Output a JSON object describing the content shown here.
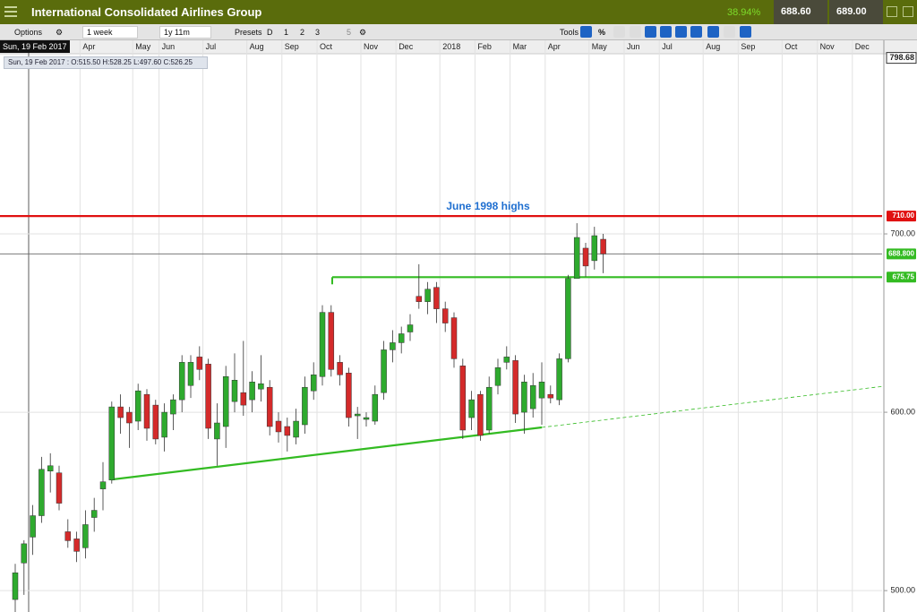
{
  "header": {
    "title": "International Consolidated Airlines Group",
    "change": "38.94%",
    "bid": "688.60",
    "ask": "689.00"
  },
  "toolbar": {
    "options": "Options",
    "interval": "1 week",
    "range": "1y 11m",
    "presets": "Presets",
    "preset_buttons": [
      "D",
      "1",
      "2",
      "3",
      "5"
    ],
    "tools": "Tools",
    "percent": "%"
  },
  "cursor": {
    "date": "Sun, 19 Feb 2017",
    "info": "Sun, 19 Feb 2017 : O:515.50 H:528.25 L:497.60 C:526.25"
  },
  "chart_data": {
    "type": "candlestick",
    "annotation": "June 1998 highs",
    "categories": [
      null,
      null,
      null,
      null,
      null,
      null,
      null,
      null,
      "Apr",
      null,
      null,
      null,
      null,
      null,
      "May",
      null,
      null,
      "Jun",
      null,
      null,
      null,
      null,
      "Jul",
      null,
      null,
      null,
      null,
      "Aug",
      null,
      null,
      null,
      "Sep",
      null,
      null,
      null,
      "Oct",
      null,
      null,
      null,
      null,
      "Nov",
      null,
      null,
      null,
      "Dec",
      null,
      null,
      null,
      null,
      "2018",
      null,
      null,
      null,
      "Feb",
      null,
      null,
      null,
      "Mar",
      null,
      null,
      null,
      "Apr",
      null,
      null,
      null,
      null,
      "May",
      null,
      null,
      null,
      "Jun",
      null,
      null,
      null,
      "Jul",
      null,
      null,
      null,
      null,
      "Aug",
      null,
      null,
      null,
      "Sep",
      null,
      null,
      null,
      null,
      "Oct",
      null,
      null,
      null,
      "Nov",
      null,
      null,
      null,
      "Dec",
      null,
      null,
      null
    ],
    "open": [
      495,
      515.5,
      530,
      542,
      567,
      566,
      533,
      529,
      524,
      541,
      557,
      562,
      603,
      600,
      595,
      610,
      604,
      586,
      599,
      607,
      615,
      631,
      627,
      585,
      592,
      606,
      611,
      607,
      613,
      614,
      595,
      592,
      586,
      593,
      612,
      620,
      656,
      628,
      622,
      598,
      596,
      595,
      611,
      635,
      639,
      645,
      665,
      662,
      670,
      658,
      653,
      626,
      597,
      610,
      590,
      615,
      628,
      629,
      600,
      602,
      608,
      610,
      607,
      630,
      675,
      692,
      685,
      697,
      null,
      null,
      null,
      null,
      null,
      null,
      null,
      null,
      null,
      null,
      null,
      null,
      null,
      null,
      null,
      null,
      null,
      null,
      null,
      null,
      null,
      null,
      null,
      null,
      null,
      null,
      null,
      null,
      null,
      null,
      null,
      null
    ],
    "high": [
      515,
      528.25,
      548,
      575,
      577,
      570,
      540,
      533,
      545,
      552,
      572,
      606,
      610,
      603,
      616,
      613,
      607,
      605,
      610,
      632,
      632,
      637,
      630,
      605,
      626,
      633,
      640,
      623,
      632,
      618,
      600,
      597,
      602,
      620,
      628,
      660,
      660,
      632,
      625,
      603,
      600,
      615,
      640,
      646,
      648,
      655,
      683,
      673,
      673,
      662,
      656,
      630,
      612,
      612,
      620,
      630,
      637,
      632,
      621,
      622,
      628,
      615,
      633,
      677,
      706,
      695,
      704,
      700,
      null,
      null,
      null,
      null,
      null,
      null,
      null,
      null,
      null,
      null,
      null,
      null,
      null,
      null,
      null,
      null,
      null,
      null,
      null,
      null,
      null,
      null,
      null,
      null,
      null,
      null,
      null,
      null,
      null,
      null,
      null,
      null
    ],
    "low": [
      488,
      497.6,
      520,
      538,
      555,
      545,
      524,
      516,
      518,
      533,
      545,
      560,
      588,
      580,
      590,
      584,
      582,
      578,
      590,
      600,
      608,
      618,
      585,
      570,
      580,
      600,
      598,
      600,
      606,
      587,
      583,
      578,
      582,
      588,
      607,
      615,
      620,
      615,
      592,
      585,
      592,
      593,
      607,
      628,
      633,
      640,
      658,
      655,
      650,
      645,
      625,
      585,
      590,
      584,
      588,
      610,
      624,
      594,
      588,
      597,
      593,
      605,
      604,
      628,
      675,
      676,
      680,
      678,
      null,
      null,
      null,
      null,
      null,
      null,
      null,
      null,
      null,
      null,
      null,
      null,
      null,
      null,
      null,
      null,
      null,
      null,
      null,
      null,
      null,
      null,
      null,
      null,
      null,
      null,
      null,
      null,
      null,
      null,
      null,
      null
    ],
    "close": [
      510,
      526.25,
      542,
      568,
      570,
      549,
      528,
      522,
      537,
      545,
      561,
      603,
      597,
      594,
      612,
      591,
      585,
      600,
      607,
      628,
      628,
      624,
      591,
      594,
      620,
      618,
      604,
      617,
      616,
      592,
      589,
      587,
      595,
      614,
      621,
      656,
      624,
      621,
      597,
      599,
      597,
      610,
      635,
      639,
      644,
      649,
      662,
      669,
      658,
      650,
      630,
      590,
      607,
      587,
      614,
      625,
      631,
      599,
      617,
      615,
      617,
      608,
      630,
      675,
      698,
      682,
      699,
      688.75,
      null,
      null,
      null,
      null,
      null,
      null,
      null,
      null,
      null,
      null,
      null,
      null,
      null,
      null,
      null,
      null,
      null,
      null,
      null,
      null,
      null,
      null,
      null,
      null,
      null,
      null,
      null,
      null,
      null,
      null,
      null,
      null
    ],
    "up_color": "#2eaa2e",
    "down_color": "#d42a2a",
    "ylim": [
      488,
      801
    ],
    "yticks": [
      {
        "value": 500,
        "label": "500.00"
      },
      {
        "value": 600,
        "label": "600.00"
      },
      {
        "value": 700,
        "label": "700.00"
      }
    ],
    "grid": true,
    "top_label": {
      "value": 798.68,
      "label": "798.68"
    },
    "levels": [
      {
        "value": 710,
        "label": "710.00",
        "color": "#e01010"
      },
      {
        "value": 688.8,
        "label": "688.800",
        "color": "#666666"
      },
      {
        "value": 675.75,
        "label": "675.75",
        "color": "#33bb22"
      }
    ],
    "trendline": {
      "x": [
        11,
        60,
        99
      ],
      "y": [
        562.3,
        591.5,
        614.6
      ],
      "color": "#33bb22"
    }
  }
}
